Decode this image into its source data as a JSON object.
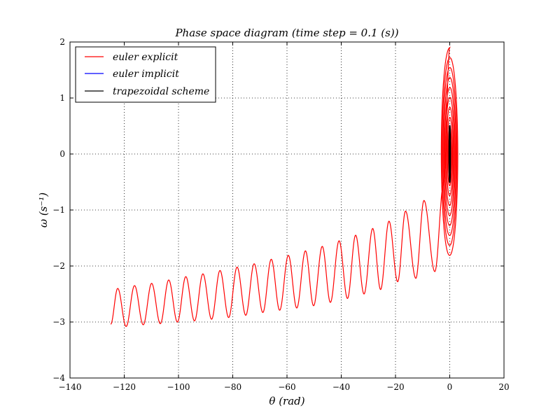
{
  "chart_data": {
    "type": "line",
    "title": "Phase space diagram (time step = 0.1 (s))",
    "xlabel": "θ (rad)",
    "ylabel": "ω (s⁻¹)",
    "xlim": [
      -140,
      20
    ],
    "ylim": [
      -4,
      2
    ],
    "x_ticks": [
      -140,
      -120,
      -100,
      -80,
      -60,
      -40,
      -20,
      0,
      20
    ],
    "y_ticks": [
      -4,
      -3,
      -2,
      -1,
      0,
      1,
      2
    ],
    "x_tick_labels": [
      "−140",
      "−120",
      "−100",
      "−80",
      "−60",
      "−40",
      "−20",
      "0",
      "20"
    ],
    "y_tick_labels": [
      "−4",
      "−3",
      "−2",
      "−1",
      "0",
      "1",
      "2"
    ],
    "grid": true,
    "legend_position": "top-left",
    "series": [
      {
        "name": "euler explicit",
        "color": "#ff0000",
        "description": "outward spiral around origin growing to ~±1.85 then drifting left in oscillation",
        "spiral_segment": {
          "theta_amplitude_range": [
            0.3,
            3.2
          ],
          "omega_amplitude_range": [
            0.3,
            1.9
          ],
          "turns": 9
        },
        "drift_peaks": [
          {
            "x": -2.2,
            "y": -0.5
          },
          {
            "x": -9.5,
            "y": -0.83
          },
          {
            "x": -16.3,
            "y": -1.02
          },
          {
            "x": -22.4,
            "y": -1.2
          },
          {
            "x": -28.4,
            "y": -1.33
          },
          {
            "x": -34.7,
            "y": -1.45
          },
          {
            "x": -40.8,
            "y": -1.55
          },
          {
            "x": -47.0,
            "y": -1.65
          },
          {
            "x": -53.2,
            "y": -1.73
          },
          {
            "x": -59.5,
            "y": -1.81
          },
          {
            "x": -65.8,
            "y": -1.88
          },
          {
            "x": -72.1,
            "y": -1.96
          },
          {
            "x": -78.4,
            "y": -2.02
          },
          {
            "x": -84.7,
            "y": -2.08
          },
          {
            "x": -91.0,
            "y": -2.14
          },
          {
            "x": -97.3,
            "y": -2.19
          },
          {
            "x": -103.6,
            "y": -2.25
          },
          {
            "x": -109.9,
            "y": -2.31
          },
          {
            "x": -116.2,
            "y": -2.35
          },
          {
            "x": -122.4,
            "y": -2.4
          }
        ],
        "drift_troughs": [
          {
            "x": -5.5,
            "y": -2.1
          },
          {
            "x": -12.5,
            "y": -2.22
          },
          {
            "x": -19.2,
            "y": -2.28
          },
          {
            "x": -25.5,
            "y": -2.42
          },
          {
            "x": -31.6,
            "y": -2.5
          },
          {
            "x": -37.7,
            "y": -2.58
          },
          {
            "x": -44.0,
            "y": -2.65
          },
          {
            "x": -50.2,
            "y": -2.71
          },
          {
            "x": -56.4,
            "y": -2.75
          },
          {
            "x": -62.7,
            "y": -2.79
          },
          {
            "x": -68.9,
            "y": -2.83
          },
          {
            "x": -75.2,
            "y": -2.88
          },
          {
            "x": -81.5,
            "y": -2.92
          },
          {
            "x": -87.8,
            "y": -2.95
          },
          {
            "x": -94.1,
            "y": -2.98
          },
          {
            "x": -100.4,
            "y": -3.0
          },
          {
            "x": -106.7,
            "y": -3.03
          },
          {
            "x": -113.0,
            "y": -3.05
          },
          {
            "x": -119.3,
            "y": -3.08
          }
        ],
        "end_point": {
          "x": -125.0,
          "y": -3.04
        }
      },
      {
        "name": "euler implicit",
        "color": "#0000ff",
        "description": "inward spiral from ~±0.5 converging to origin",
        "theta_amplitude_range": [
          0.0,
          0.22
        ],
        "omega_amplitude_range": [
          0.0,
          0.52
        ]
      },
      {
        "name": "trapezoidal scheme",
        "color": "#000000",
        "description": "closed ellipse at constant amplitude",
        "theta_amplitude": 0.18,
        "omega_amplitude": 0.5
      }
    ]
  }
}
